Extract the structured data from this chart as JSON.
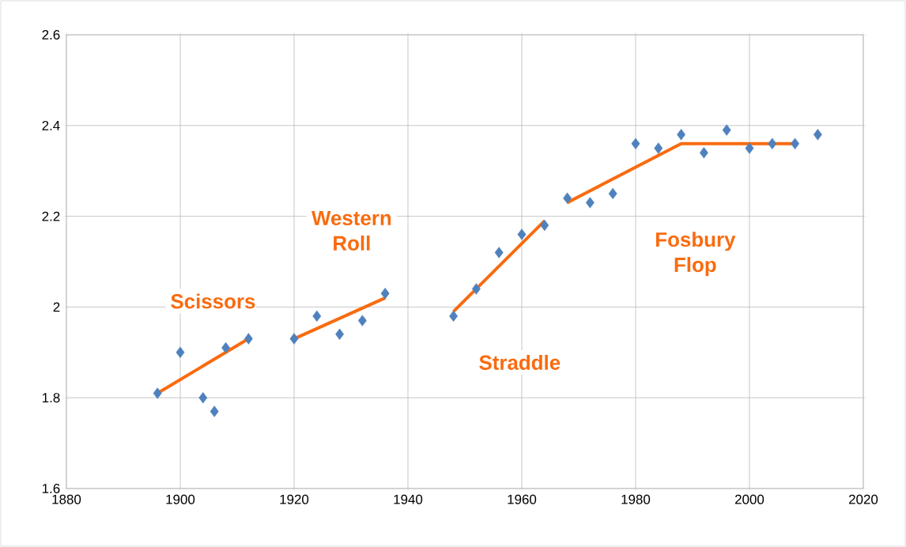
{
  "chart_data": {
    "type": "scatter",
    "xlim": [
      1880,
      2020
    ],
    "ylim": [
      1.6,
      2.6
    ],
    "xticks": [
      1880,
      1900,
      1920,
      1940,
      1960,
      1980,
      2000,
      2020
    ],
    "yticks": [
      1.6,
      1.8,
      2,
      2.2,
      2.4,
      2.6
    ],
    "grid": true,
    "series": [
      {
        "marker": "diamond",
        "color": "#4f81bd",
        "x": [
          1896,
          1900,
          1904,
          1906,
          1908,
          1912,
          1920,
          1924,
          1928,
          1932,
          1936,
          1948,
          1952,
          1956,
          1960,
          1964,
          1968,
          1972,
          1976,
          1980,
          1984,
          1988,
          1992,
          1996,
          2000,
          2004,
          2008,
          2012
        ],
        "values": [
          1.81,
          1.9,
          1.8,
          1.77,
          1.91,
          1.93,
          1.93,
          1.98,
          1.94,
          1.97,
          2.03,
          1.98,
          2.04,
          2.12,
          2.16,
          2.18,
          2.24,
          2.23,
          2.25,
          2.36,
          2.35,
          2.38,
          2.34,
          2.39,
          2.35,
          2.36,
          2.36,
          2.38
        ]
      },
      {
        "type": "line",
        "marker": "none",
        "color": "#f96b0f",
        "x": [
          1896,
          1912
        ],
        "values": [
          1.81,
          1.93
        ]
      },
      {
        "type": "line",
        "marker": "none",
        "color": "#f96b0f",
        "x": [
          1920,
          1936
        ],
        "values": [
          1.93,
          2.02
        ]
      },
      {
        "type": "line",
        "marker": "none",
        "color": "#f96b0f",
        "x": [
          1948,
          1964
        ],
        "values": [
          1.99,
          2.19
        ]
      },
      {
        "type": "line",
        "marker": "none",
        "color": "#f96b0f",
        "x": [
          1968,
          1988,
          2008
        ],
        "values": [
          2.23,
          2.36,
          2.36
        ]
      }
    ],
    "annotations": [
      "Scissors",
      "Western Roll",
      "Straddle",
      "Fosbury Flop"
    ]
  }
}
